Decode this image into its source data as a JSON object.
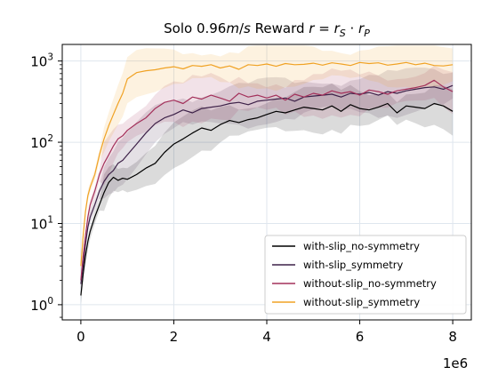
{
  "chart_data": {
    "type": "line",
    "title_prefix": "Solo 0.96",
    "title_m": "m",
    "title_slash": "/",
    "title_s": "s",
    "title_mid": " Reward ",
    "title_r1": "r",
    "title_eq": " = ",
    "title_r2": "r",
    "title_sub_s": "S",
    "title_dot": " · ",
    "title_r3": "r",
    "title_sub_p": "P",
    "xlabel": "",
    "ylabel": "",
    "x_offset_label": "1e6",
    "yscale": "log",
    "xlim": [
      -0.4,
      8.4
    ],
    "ylim": [
      0.65,
      1600
    ],
    "xticks": [
      0,
      2,
      4,
      6,
      8
    ],
    "xtick_labels": [
      "0",
      "2",
      "4",
      "6",
      "8"
    ],
    "yticks": [
      1,
      10,
      100,
      1000
    ],
    "ytick_base": [
      "10",
      "10",
      "10",
      "10"
    ],
    "ytick_exp": [
      "0",
      "1",
      "2",
      "3"
    ],
    "grid": true,
    "legend_position": "lower right",
    "x": [
      0,
      0.05,
      0.1,
      0.15,
      0.2,
      0.3,
      0.4,
      0.5,
      0.6,
      0.7,
      0.8,
      0.9,
      1.0,
      1.2,
      1.4,
      1.6,
      1.8,
      2.0,
      2.2,
      2.4,
      2.6,
      2.8,
      3.0,
      3.2,
      3.4,
      3.6,
      3.8,
      4.0,
      4.2,
      4.4,
      4.6,
      4.8,
      5.0,
      5.2,
      5.4,
      5.6,
      5.8,
      6.0,
      6.2,
      6.4,
      6.6,
      6.8,
      7.0,
      7.2,
      7.4,
      7.6,
      7.8,
      8.0
    ],
    "series": [
      {
        "name": "with-slip_no-symmetry",
        "color": "#000000",
        "values": [
          1.3,
          2.4,
          4.0,
          6.0,
          8.0,
          12,
          17,
          24,
          32,
          37,
          34,
          36,
          35,
          40,
          48,
          55,
          75,
          95,
          110,
          130,
          150,
          140,
          165,
          185,
          175,
          190,
          200,
          220,
          240,
          230,
          250,
          270,
          260,
          250,
          280,
          240,
          290,
          260,
          250,
          270,
          300,
          230,
          280,
          270,
          260,
          300,
          280,
          240
        ]
      },
      {
        "name": "with-slip_symmetry",
        "color": "#3d2148",
        "values": [
          1.8,
          3.0,
          5.5,
          9.0,
          12,
          17,
          25,
          33,
          40,
          45,
          55,
          60,
          70,
          95,
          130,
          170,
          200,
          220,
          250,
          230,
          260,
          270,
          280,
          300,
          310,
          290,
          320,
          330,
          340,
          350,
          320,
          360,
          370,
          380,
          390,
          360,
          400,
          390,
          410,
          380,
          420,
          400,
          430,
          450,
          470,
          480,
          450,
          500
        ]
      },
      {
        "name": "without-slip_no-symmetry",
        "color": "#a3305a",
        "values": [
          2.0,
          4.0,
          7.0,
          12,
          17,
          25,
          40,
          55,
          70,
          90,
          110,
          120,
          140,
          170,
          200,
          260,
          310,
          330,
          300,
          360,
          340,
          380,
          350,
          320,
          400,
          360,
          380,
          350,
          380,
          330,
          390,
          360,
          400,
          380,
          430,
          400,
          420,
          380,
          440,
          420,
          390,
          430,
          450,
          470,
          500,
          580,
          480,
          420
        ]
      },
      {
        "name": "without-slip_symmetry",
        "color": "#f0a224",
        "values": [
          3.0,
          7.0,
          14,
          22,
          28,
          40,
          70,
          110,
          160,
          220,
          300,
          400,
          600,
          720,
          760,
          780,
          820,
          850,
          800,
          880,
          860,
          900,
          820,
          870,
          790,
          900,
          880,
          920,
          860,
          930,
          900,
          910,
          940,
          890,
          950,
          920,
          880,
          960,
          930,
          950,
          890,
          920,
          960,
          900,
          940,
          880,
          870,
          900
        ]
      }
    ]
  }
}
